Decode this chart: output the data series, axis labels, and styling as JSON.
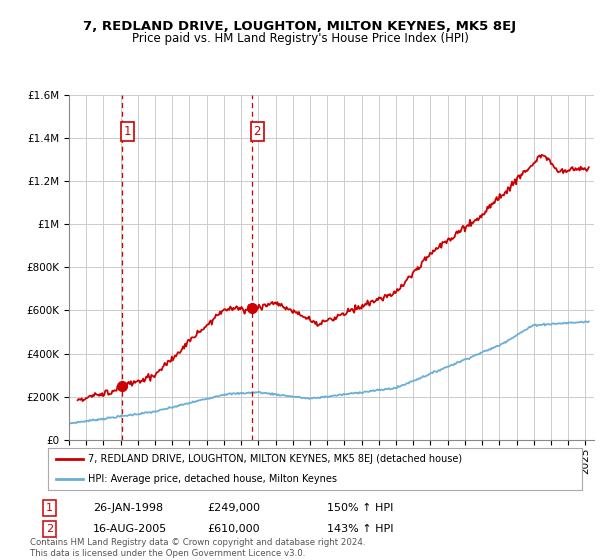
{
  "title": "7, REDLAND DRIVE, LOUGHTON, MILTON KEYNES, MK5 8EJ",
  "subtitle": "Price paid vs. HM Land Registry's House Price Index (HPI)",
  "legend_line1": "7, REDLAND DRIVE, LOUGHTON, MILTON KEYNES, MK5 8EJ (detached house)",
  "legend_line2": "HPI: Average price, detached house, Milton Keynes",
  "annotation1_date": "26-JAN-1998",
  "annotation1_price": "£249,000",
  "annotation1_hpi": "150% ↑ HPI",
  "annotation2_date": "16-AUG-2005",
  "annotation2_price": "£610,000",
  "annotation2_hpi": "143% ↑ HPI",
  "footer": "Contains HM Land Registry data © Crown copyright and database right 2024.\nThis data is licensed under the Open Government Licence v3.0.",
  "sale1_x": 1998.07,
  "sale1_y": 249000,
  "sale2_x": 2005.62,
  "sale2_y": 610000,
  "hpi_color": "#6baed6",
  "price_color": "#cc0000",
  "ylim": [
    0,
    1600000
  ],
  "xlim_start": 1995,
  "xlim_end": 2025.5,
  "background_color": "#ffffff",
  "grid_color": "#cccccc"
}
